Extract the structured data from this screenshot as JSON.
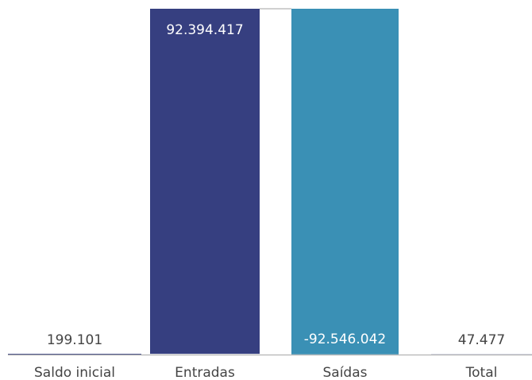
{
  "chart_data": {
    "type": "waterfall",
    "categories": [
      "Saldo inicial",
      "Entradas",
      "Saídas",
      "Total"
    ],
    "values": [
      199101,
      92394417,
      -92546042,
      47477
    ],
    "data_labels": [
      "199.101",
      "92.394.417",
      "-92.546.042",
      "47.477"
    ],
    "title": "",
    "xlabel": "",
    "ylabel": "",
    "colors": {
      "increase": "#363f80",
      "decrease": "#3a90b5",
      "axis": "#b3b3b3",
      "label_dark": "#444444",
      "label_light": "#ffffff"
    }
  }
}
